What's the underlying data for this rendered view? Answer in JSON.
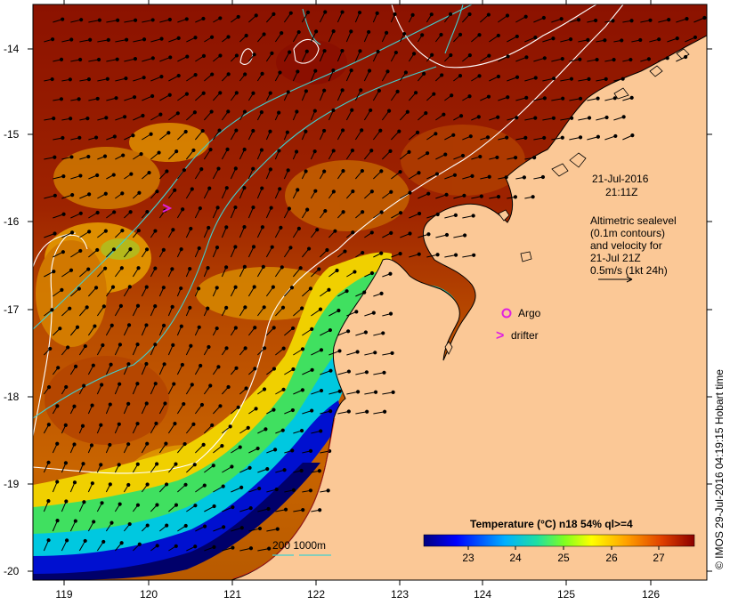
{
  "map": {
    "date_line": "21-Jul-2016",
    "time_line": "21:11Z",
    "legend_lines": [
      "Altimetric sealevel",
      "(0.1m contours)",
      "and velocity for",
      "21-Jul 21Z",
      "0.5m/s (1kt 24h)"
    ],
    "argo_label": "Argo",
    "drifter_label": "drifter",
    "drifter_symbol": ">",
    "depth_label": "200  1000m",
    "colorbar_title": "Temperature (°C) n18 54% ql>=4",
    "colorbar_ticks": [
      "23",
      "24",
      "25",
      "26",
      "27"
    ],
    "credit": "© IMOS 29-Jul-2016 04:19:15 Hobart time",
    "lat_labels": [
      "-14",
      "-15",
      "-16",
      "-17",
      "-18",
      "-19",
      "-20"
    ],
    "lon_labels": [
      "119",
      "120",
      "121",
      "122",
      "123",
      "124",
      "125",
      "126"
    ],
    "colors": {
      "land": "#fbc896",
      "coast": "#000000",
      "contour": "#ffffff",
      "isobath": "#40d0d0",
      "argo": "#e020e0",
      "drifter": "#e020e0"
    }
  }
}
